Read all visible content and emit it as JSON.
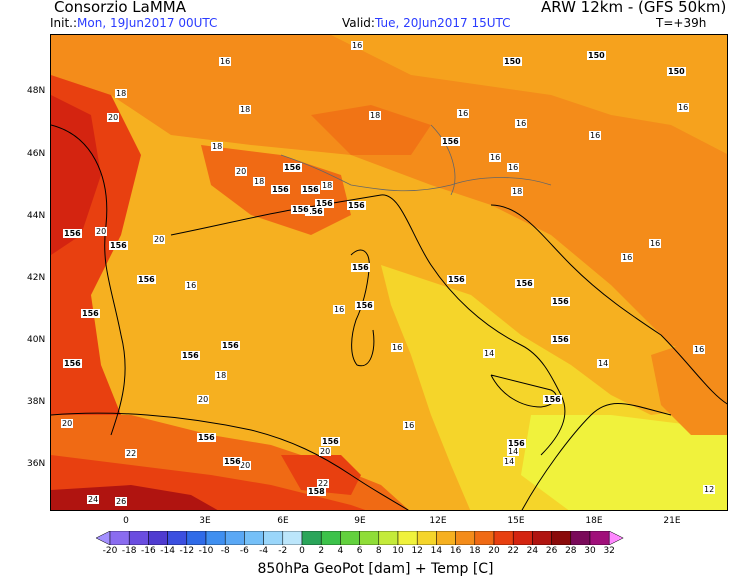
{
  "header": {
    "left_title": "Consorzio LaMMA",
    "right_title": "ARW 12km - (GFS 50km)",
    "init_label": "Init.:",
    "init_value": "Mon, 19Jun2017 00UTC",
    "valid_label": "Valid:",
    "valid_value": "Tue, 20Jun2017 15UTC",
    "forecast_step": "T=+39h"
  },
  "axes": {
    "lat_labels": [
      "48N",
      "46N",
      "44N",
      "42N",
      "40N",
      "38N",
      "36N"
    ],
    "lon_labels": [
      "0",
      "3E",
      "6E",
      "9E",
      "12E",
      "15E",
      "18E",
      "21E"
    ]
  },
  "legend": {
    "title": "850hPa GeoPot [dam] + Temp [C]",
    "ticks": [
      "-20",
      "-18",
      "-16",
      "-14",
      "-12",
      "-10",
      "-8",
      "-6",
      "-4",
      "-2",
      "0",
      "2",
      "4",
      "6",
      "8",
      "10",
      "12",
      "14",
      "16",
      "18",
      "20",
      "22",
      "24",
      "26",
      "28",
      "30",
      "32"
    ],
    "colors": [
      "#a390ff",
      "#8a6cf0",
      "#6a4de0",
      "#4f3bd0",
      "#3b4fe0",
      "#2f6be8",
      "#3f8ff0",
      "#5aa8f5",
      "#75c0f8",
      "#9ad6fa",
      "#bce6fb",
      "#2aa55a",
      "#3cc24a",
      "#62d13e",
      "#8fdd38",
      "#c4eb3a",
      "#f0f23c",
      "#f5d52a",
      "#f6b020",
      "#f48c1a",
      "#f06a14",
      "#e84010",
      "#d42410",
      "#b01410",
      "#8a0a0a",
      "#7a0a5a",
      "#a0107a",
      "#ff88ff"
    ]
  },
  "map_labels": {
    "temperature": [
      {
        "text": "16"
      },
      {
        "text": "16"
      },
      {
        "text": "18"
      },
      {
        "text": "20"
      },
      {
        "text": "18"
      },
      {
        "text": "18"
      },
      {
        "text": "16"
      },
      {
        "text": "16"
      },
      {
        "text": "18"
      },
      {
        "text": "16"
      },
      {
        "text": "16"
      },
      {
        "text": "20"
      },
      {
        "text": "18"
      },
      {
        "text": "18"
      },
      {
        "text": "16"
      },
      {
        "text": "20"
      },
      {
        "text": "20"
      },
      {
        "text": "16"
      },
      {
        "text": "16"
      },
      {
        "text": "16"
      },
      {
        "text": "16"
      },
      {
        "text": "16"
      },
      {
        "text": "14"
      },
      {
        "text": "16"
      },
      {
        "text": "14"
      },
      {
        "text": "18"
      },
      {
        "text": "20"
      },
      {
        "text": "14"
      },
      {
        "text": "20"
      },
      {
        "text": "22"
      },
      {
        "text": "20"
      },
      {
        "text": "22"
      },
      {
        "text": "24"
      },
      {
        "text": "26"
      },
      {
        "text": "14"
      },
      {
        "text": "12"
      },
      {
        "text": "14"
      },
      {
        "text": "20"
      },
      {
        "text": "16"
      },
      {
        "text": "16"
      },
      {
        "text": "18"
      }
    ],
    "geopot": [
      {
        "text": "150"
      },
      {
        "text": "150"
      },
      {
        "text": "150"
      },
      {
        "text": "156"
      },
      {
        "text": "156"
      },
      {
        "text": "156"
      },
      {
        "text": "156"
      },
      {
        "text": "156"
      },
      {
        "text": "156"
      },
      {
        "text": "156"
      },
      {
        "text": "156"
      },
      {
        "text": "156"
      },
      {
        "text": "156"
      },
      {
        "text": "156"
      },
      {
        "text": "156"
      },
      {
        "text": "156"
      },
      {
        "text": "156"
      },
      {
        "text": "156"
      },
      {
        "text": "156"
      },
      {
        "text": "156"
      },
      {
        "text": "156"
      },
      {
        "text": "156"
      },
      {
        "text": "156"
      },
      {
        "text": "156"
      },
      {
        "text": "156"
      },
      {
        "text": "156"
      },
      {
        "text": "156"
      },
      {
        "text": "156"
      },
      {
        "text": "158"
      },
      {
        "text": "156"
      }
    ]
  }
}
